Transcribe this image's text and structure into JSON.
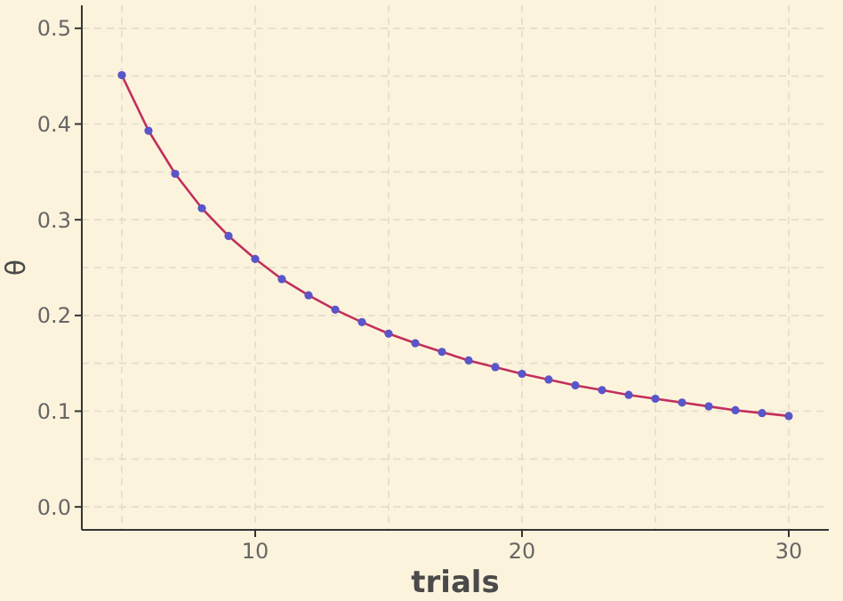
{
  "chart_data": {
    "type": "line",
    "xlabel": "trials",
    "ylabel": "θ",
    "x": [
      5,
      6,
      7,
      8,
      9,
      10,
      11,
      12,
      13,
      14,
      15,
      16,
      17,
      18,
      19,
      20,
      21,
      22,
      23,
      24,
      25,
      26,
      27,
      28,
      29,
      30
    ],
    "series": [
      {
        "color": "#c2305c",
        "values": [
          0.451,
          0.393,
          0.348,
          0.312,
          0.283,
          0.259,
          0.238,
          0.221,
          0.206,
          0.193,
          0.181,
          0.171,
          0.162,
          0.153,
          0.146,
          0.139,
          0.133,
          0.127,
          0.122,
          0.117,
          0.113,
          0.109,
          0.105,
          0.101,
          0.098,
          0.095
        ]
      }
    ],
    "xlim": [
      3.5,
      31.5
    ],
    "xticks": [
      10,
      20,
      30
    ],
    "ylim": [
      -0.024,
      0.524
    ],
    "yticks": [
      {
        "value": 0,
        "label": "0.0"
      },
      {
        "value": 0.1,
        "label": "0.1"
      },
      {
        "value": 0.2,
        "label": "0.2"
      },
      {
        "value": 0.3,
        "label": "0.3"
      },
      {
        "value": 0.4,
        "label": "0.4"
      },
      {
        "value": 0.5,
        "label": "0.5"
      }
    ],
    "grid": true,
    "marker": "circle",
    "line_style": "solid"
  }
}
